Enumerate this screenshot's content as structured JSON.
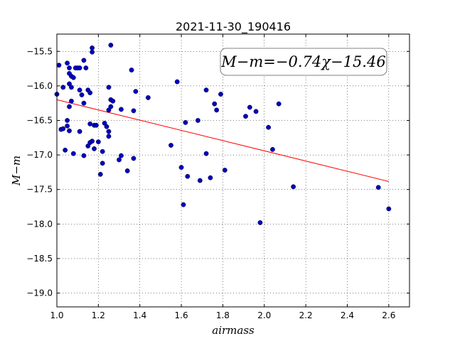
{
  "chart_data": {
    "type": "scatter",
    "title": "2021-11-30_190416",
    "xlabel": "airmass",
    "ylabel": "M−m",
    "xlim": [
      1.0,
      2.7
    ],
    "ylim": [
      -19.2,
      -15.25
    ],
    "y_inverted": true,
    "grid": true,
    "xticks": [
      "1.0",
      "1.2",
      "1.4",
      "1.6",
      "1.8",
      "2.0",
      "2.2",
      "2.4",
      "2.6"
    ],
    "yticks": [
      "−15.5",
      "−16.0",
      "−16.5",
      "−17.0",
      "−17.5",
      "−18.0",
      "−18.5",
      "−19.0"
    ],
    "fit_label": "M−m=−0.74χ−15.46",
    "fit_line": {
      "slope": -0.74,
      "intercept": -15.46,
      "x_range": [
        1.0,
        2.6
      ],
      "color": "#ff0000"
    },
    "marker_color": "#0000c0",
    "points": [
      [
        1.01,
        -15.7
      ],
      [
        1.0,
        -16.12
      ],
      [
        1.03,
        -16.02
      ],
      [
        1.05,
        -15.67
      ],
      [
        1.06,
        -15.74
      ],
      [
        1.06,
        -15.82
      ],
      [
        1.07,
        -15.86
      ],
      [
        1.08,
        -15.88
      ],
      [
        1.09,
        -15.74
      ],
      [
        1.1,
        -15.74
      ],
      [
        1.11,
        -15.74
      ],
      [
        1.13,
        -15.63
      ],
      [
        1.14,
        -15.74
      ],
      [
        1.17,
        -15.51
      ],
      [
        1.17,
        -15.45
      ],
      [
        1.26,
        -15.41
      ],
      [
        1.06,
        -15.97
      ],
      [
        1.07,
        -16.02
      ],
      [
        1.11,
        -16.06
      ],
      [
        1.12,
        -16.13
      ],
      [
        1.13,
        -16.25
      ],
      [
        1.15,
        -16.06
      ],
      [
        1.16,
        -16.1
      ],
      [
        1.07,
        -16.22
      ],
      [
        1.06,
        -16.3
      ],
      [
        1.02,
        -16.63
      ],
      [
        1.03,
        -16.62
      ],
      [
        1.05,
        -16.58
      ],
      [
        1.05,
        -16.5
      ],
      [
        1.06,
        -16.65
      ],
      [
        1.11,
        -16.66
      ],
      [
        1.16,
        -16.55
      ],
      [
        1.18,
        -16.57
      ],
      [
        1.19,
        -16.57
      ],
      [
        1.04,
        -16.93
      ],
      [
        1.08,
        -16.98
      ],
      [
        1.13,
        -17.01
      ],
      [
        1.15,
        -16.87
      ],
      [
        1.16,
        -16.82
      ],
      [
        1.17,
        -16.8
      ],
      [
        1.18,
        -16.91
      ],
      [
        1.2,
        -16.81
      ],
      [
        1.23,
        -16.54
      ],
      [
        1.24,
        -16.59
      ],
      [
        1.25,
        -16.66
      ],
      [
        1.25,
        -16.73
      ],
      [
        1.22,
        -16.95
      ],
      [
        1.22,
        -17.12
      ],
      [
        1.21,
        -17.28
      ],
      [
        1.25,
        -16.02
      ],
      [
        1.26,
        -16.2
      ],
      [
        1.27,
        -16.22
      ],
      [
        1.26,
        -16.3
      ],
      [
        1.25,
        -16.35
      ],
      [
        1.31,
        -16.34
      ],
      [
        1.37,
        -16.36
      ],
      [
        1.36,
        -15.77
      ],
      [
        1.38,
        -16.08
      ],
      [
        1.44,
        -16.17
      ],
      [
        1.3,
        -17.07
      ],
      [
        1.31,
        -17.01
      ],
      [
        1.34,
        -17.23
      ],
      [
        1.37,
        -17.05
      ],
      [
        1.55,
        -16.86
      ],
      [
        1.58,
        -15.94
      ],
      [
        1.6,
        -17.18
      ],
      [
        1.61,
        -17.72
      ],
      [
        1.62,
        -16.53
      ],
      [
        1.63,
        -17.31
      ],
      [
        1.68,
        -16.5
      ],
      [
        1.69,
        -17.37
      ],
      [
        1.72,
        -16.06
      ],
      [
        1.72,
        -16.98
      ],
      [
        1.74,
        -17.33
      ],
      [
        1.76,
        -16.26
      ],
      [
        1.77,
        -16.35
      ],
      [
        1.79,
        -16.12
      ],
      [
        1.81,
        -17.22
      ],
      [
        1.91,
        -16.44
      ],
      [
        1.93,
        -16.31
      ],
      [
        1.96,
        -16.37
      ],
      [
        1.98,
        -17.98
      ],
      [
        2.02,
        -16.6
      ],
      [
        2.04,
        -16.92
      ],
      [
        2.07,
        -16.26
      ],
      [
        2.14,
        -17.46
      ],
      [
        2.55,
        -17.47
      ],
      [
        2.6,
        -17.78
      ]
    ]
  }
}
